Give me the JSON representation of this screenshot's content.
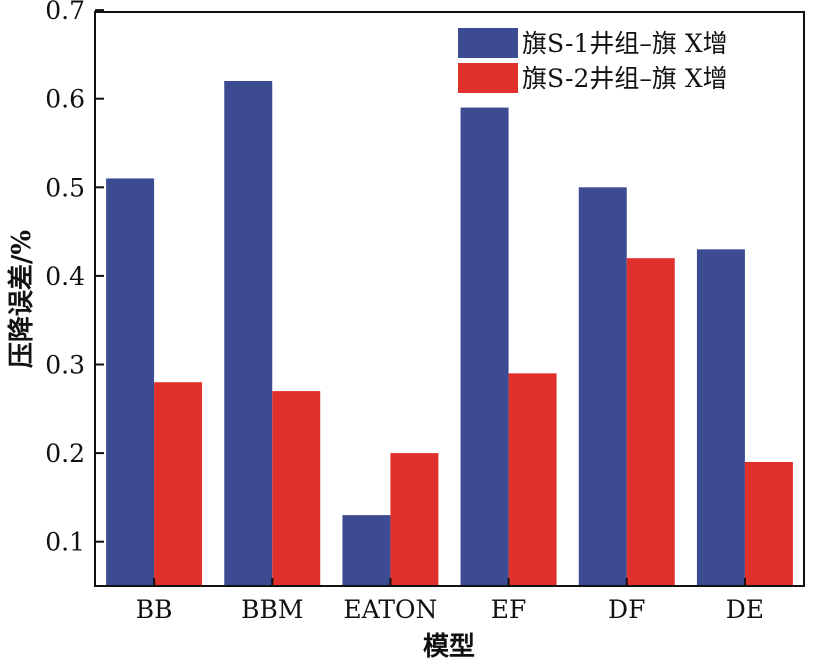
{
  "chart_data": {
    "type": "bar",
    "categories": [
      "BB",
      "BBM",
      "EATON",
      "EF",
      "DF",
      "DE"
    ],
    "series": [
      {
        "name": "旗S-1井组–旗 X增",
        "color": "#3d4b92",
        "values": [
          0.51,
          0.62,
          0.13,
          0.59,
          0.5,
          0.43
        ]
      },
      {
        "name": "旗S-2井组–旗 X增",
        "color": "#e0302c",
        "values": [
          0.28,
          0.27,
          0.2,
          0.29,
          0.42,
          0.19
        ]
      }
    ],
    "title": "",
    "xlabel": "模型",
    "ylabel": "压降误差/%",
    "ylim": [
      0.05,
      0.7
    ],
    "yticks": [
      0.1,
      0.2,
      0.3,
      0.4,
      0.5,
      0.6,
      0.7
    ],
    "ytick_labels": [
      "0.1",
      "0.2",
      "0.3",
      "0.4",
      "0.5",
      "0.6",
      "0.7"
    ],
    "grid": false,
    "legend_position": "top-right"
  }
}
